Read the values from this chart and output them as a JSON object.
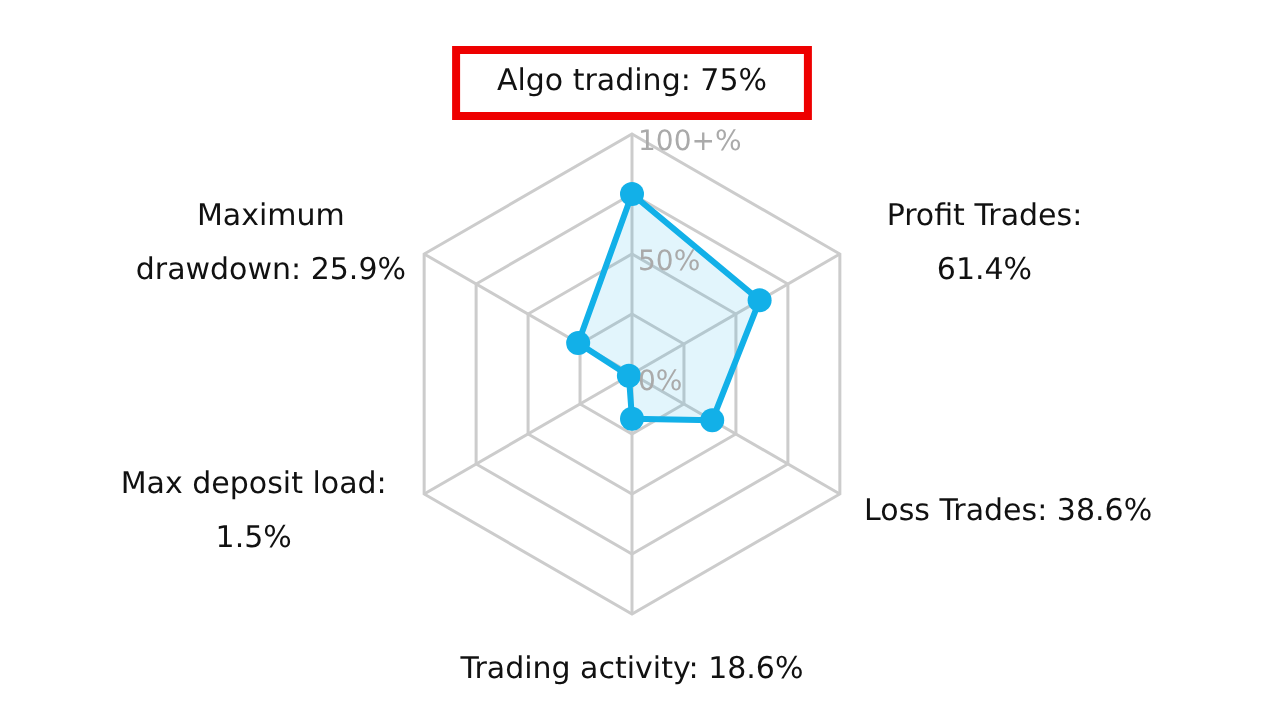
{
  "chart_data": {
    "type": "radar",
    "categories": [
      "Algo trading: 75%",
      "Profit Trades:\n61.4%",
      "Loss Trades: 38.6%",
      "Trading activity: 18.6%",
      "Max deposit load:\n1.5%",
      "Maximum\ndrawdown: 25.9%"
    ],
    "series": [
      {
        "color": "#12b0e8",
        "values": [
          75,
          61.4,
          38.6,
          18.6,
          1.5,
          25.9
        ]
      }
    ],
    "ylim": [
      0,
      100
    ],
    "yticks": [
      {
        "value": 0,
        "label": "0%"
      },
      {
        "value": 50,
        "label": "50%"
      },
      {
        "value": 100,
        "label": "100+%"
      }
    ],
    "grid": true,
    "marker": "circle",
    "line_style": "solid"
  }
}
